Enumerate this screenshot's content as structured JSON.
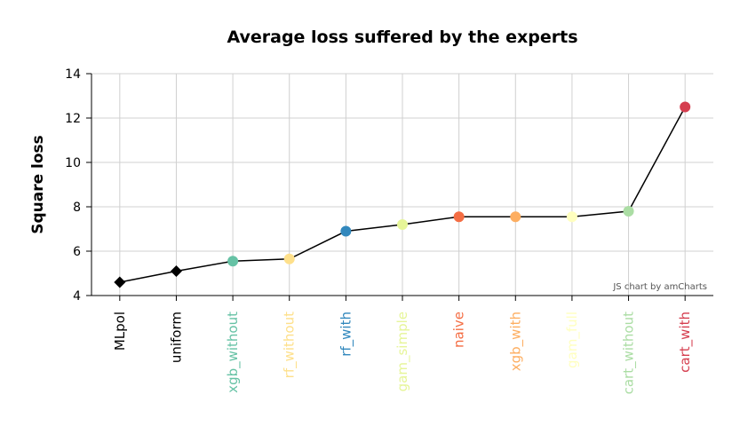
{
  "chart_data": {
    "type": "line",
    "title": "Average loss suffered by the experts",
    "xlabel": "",
    "ylabel": "Square loss",
    "ylim": [
      4,
      14
    ],
    "yticks": [
      4,
      6,
      8,
      10,
      12,
      14
    ],
    "grid": true,
    "categories": [
      "MLpol",
      "uniform",
      "xgb_without",
      "rf_without",
      "rf_with",
      "gam_simple",
      "naive",
      "xgb_with",
      "gam_full",
      "cart_without",
      "cart_with"
    ],
    "values": [
      4.6,
      5.1,
      5.55,
      5.65,
      6.9,
      7.2,
      7.55,
      7.55,
      7.55,
      7.8,
      12.5
    ],
    "markers": [
      "diamond",
      "diamond",
      "circle",
      "circle",
      "circle",
      "circle",
      "circle",
      "circle",
      "circle",
      "circle",
      "circle"
    ],
    "colors": [
      "#000000",
      "#000000",
      "#66c2a5",
      "#fee08b",
      "#3288bd",
      "#e6f598",
      "#f46d43",
      "#fdae61",
      "#ffffbf",
      "#abdda4",
      "#d53e4f"
    ],
    "line_color": "#000000",
    "credit": "JS chart by amCharts"
  }
}
